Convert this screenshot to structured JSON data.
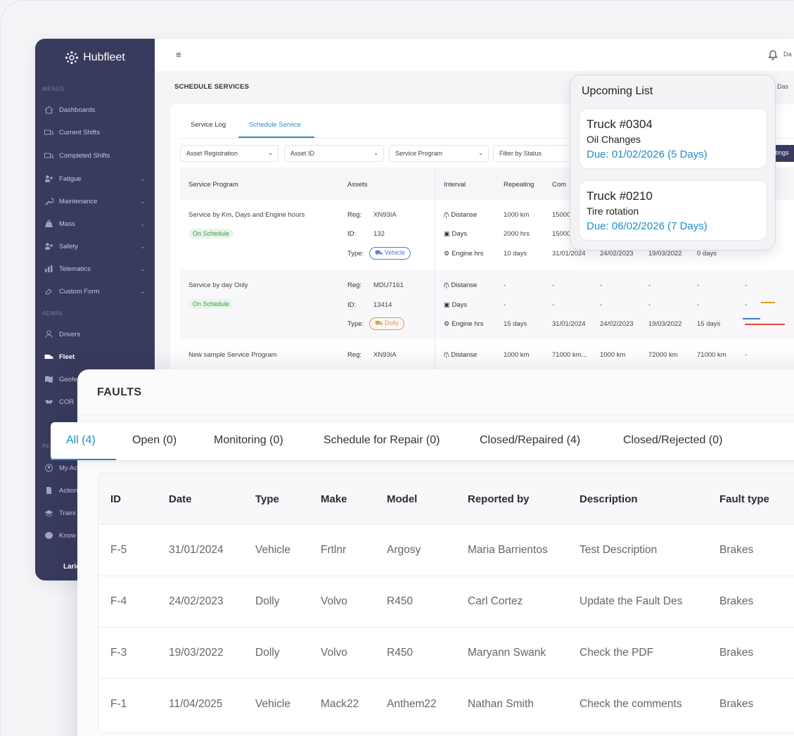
{
  "brand": "Hubfleet",
  "sidebar": {
    "menus_label": "MENUS",
    "admin_label": "ADMIN",
    "items": [
      {
        "label": "Dashboards",
        "icon": "home-icon"
      },
      {
        "label": "Current Shifts",
        "icon": "truck-icon"
      },
      {
        "label": "Completed Shifts",
        "icon": "truck-icon"
      },
      {
        "label": "Fatigue",
        "icon": "users-icon"
      },
      {
        "label": "Maintenance",
        "icon": "wrench-icon"
      },
      {
        "label": "Mass",
        "icon": "weight-icon"
      },
      {
        "label": "Safety",
        "icon": "users-icon"
      },
      {
        "label": "Telematics",
        "icon": "chart-icon"
      },
      {
        "label": "Custom Form",
        "icon": "eraser-icon"
      }
    ],
    "admin_items": [
      {
        "label": "Drivers",
        "icon": "user-icon"
      },
      {
        "label": "Fleet",
        "icon": "truck-icon"
      },
      {
        "label": "Geofe",
        "icon": "map-icon"
      },
      {
        "label": "COR",
        "icon": "handshake-icon"
      }
    ],
    "personal_items": [
      {
        "label": "My Ac",
        "icon": "user-circle-icon"
      },
      {
        "label": "Action",
        "icon": "document-icon"
      },
      {
        "label": "Traini",
        "icon": "graduation-icon"
      },
      {
        "label": "Know",
        "icon": "brain-icon"
      }
    ],
    "personal_label": "PE",
    "user_name": "Laric"
  },
  "topbar": {
    "menu_icon": "≡",
    "user_initial": "Da"
  },
  "schedule": {
    "title": "SCHEDULE SERVICES",
    "breadcrumb": "/ Das",
    "tabs": [
      "Service Log",
      "Schedule Service"
    ],
    "filters": [
      "Asset Registration",
      "Asset ID",
      "Service Program",
      "Filter by Status"
    ],
    "settings_label": "ttings",
    "columns": [
      "Service Program",
      "Assets",
      "Interval",
      "Repeating",
      "Com"
    ],
    "rows": [
      {
        "program": "Service by Km, Days and Engine hours",
        "status": "On Schedule",
        "reg": "XN93IA",
        "id": "132",
        "type": "Vehicle",
        "intervals": [
          {
            "name": "Distanse",
            "values": [
              "1000 km",
              "15000",
              "",
              "",
              ""
            ]
          },
          {
            "name": "Days",
            "values": [
              "2000 hrs",
              "15000",
              "",
              "",
              ""
            ]
          },
          {
            "name": "Engine hrs",
            "values": [
              "10 days",
              "31/01/2024",
              "24/02/2023",
              "19/03/2022",
              "0 days"
            ]
          }
        ]
      },
      {
        "program": "Service by day Only",
        "status": "On Schedule",
        "reg": "MDU7161",
        "id": "13414",
        "type": "Dolly",
        "intervals": [
          {
            "name": "Distanse",
            "values": [
              "-",
              "-",
              "-",
              "-",
              "-",
              "-"
            ]
          },
          {
            "name": "Days",
            "values": [
              "-",
              "-",
              "-",
              "-",
              "-",
              "-"
            ]
          },
          {
            "name": "Engine hrs",
            "values": [
              "15 days",
              "31/01/2024",
              "24/02/2023",
              "19/03/2022",
              "15 days"
            ]
          }
        ]
      },
      {
        "program": "New sample Service Program",
        "reg": "XN93IA",
        "intervals": [
          {
            "name": "Distanse",
            "values": [
              "1000 km",
              "71000 km...",
              "1000 km",
              "72000 km",
              "71000 km",
              "-"
            ]
          }
        ]
      }
    ],
    "reg_label": "Reg:",
    "id_label": "ID:",
    "type_label": "Type:"
  },
  "upcoming": {
    "title": "Upcoming List",
    "items": [
      {
        "truck": "Truck #0304",
        "service": "Oil Changes",
        "due": "Due: 01/02/2026 (5 Days)"
      },
      {
        "truck": "Truck #0210",
        "service": "Tire rotation",
        "due": "Due: 06/02/2026 (7 Days)"
      }
    ]
  },
  "faults": {
    "title": "FAULTS",
    "tabs": [
      "All (4)",
      "Open (0)",
      "Monitoring (0)",
      "Schedule for Repair (0)",
      "Closed/Repaired (4)",
      "Closed/Rejected (0)"
    ],
    "columns": [
      "ID",
      "Date",
      "Type",
      "Make",
      "Model",
      "Reported by",
      "Description",
      "Fault type"
    ],
    "rows": [
      [
        "F-5",
        "31/01/2024",
        "Vehicle",
        "Frtlnr",
        "Argosy",
        "Maria Barrientos",
        "Test Description",
        "Brakes"
      ],
      [
        "F-4",
        "24/02/2023",
        "Dolly",
        "Volvo",
        "R450",
        "Carl Cortez",
        "Update the Fault Des",
        "Brakes"
      ],
      [
        "F-3",
        "19/03/2022",
        "Dolly",
        "Volvo",
        "R450",
        "Maryann Swank",
        "Check the PDF",
        "Brakes"
      ],
      [
        "F-1",
        "11/04/2025",
        "Vehicle",
        "Mack22",
        "Anthem22",
        "Nathan Smith",
        "Check the comments",
        "Brakes"
      ]
    ]
  },
  "colors": {
    "accent": "#1e8ec6",
    "sidebar": "#383a5e",
    "green": "#3a9a4a",
    "orange": "#e69a2e",
    "red": "#e8443a"
  }
}
